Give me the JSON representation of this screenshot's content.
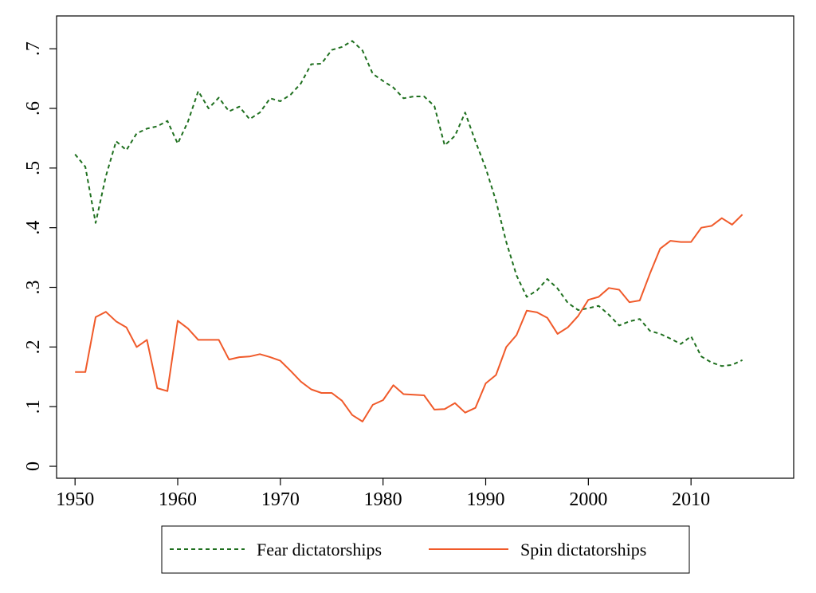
{
  "chart_data": {
    "type": "line",
    "title": "",
    "xlabel": "",
    "ylabel": "",
    "xlim": [
      1948.2,
      2020
    ],
    "ylim": [
      -0.02,
      0.755
    ],
    "x_ticks": [
      1950,
      1960,
      1970,
      1980,
      1990,
      2000,
      2010
    ],
    "x_tick_labels": [
      "1950",
      "1960",
      "1970",
      "1980",
      "1990",
      "2000",
      "2010"
    ],
    "y_ticks": [
      0,
      0.1,
      0.2,
      0.3,
      0.4,
      0.5,
      0.6,
      0.7
    ],
    "y_tick_labels": [
      "0",
      ".1",
      ".2",
      ".3",
      ".4",
      ".5",
      ".6",
      ".7"
    ],
    "grid": false,
    "legend_position": "bottom",
    "x": [
      1950,
      1951,
      1952,
      1953,
      1954,
      1955,
      1956,
      1957,
      1958,
      1959,
      1960,
      1961,
      1962,
      1963,
      1964,
      1965,
      1966,
      1967,
      1968,
      1969,
      1970,
      1971,
      1972,
      1973,
      1974,
      1975,
      1976,
      1977,
      1978,
      1979,
      1980,
      1981,
      1982,
      1983,
      1984,
      1985,
      1986,
      1987,
      1988,
      1989,
      1990,
      1991,
      1992,
      1993,
      1994,
      1995,
      1996,
      1997,
      1998,
      1999,
      2000,
      2001,
      2002,
      2003,
      2004,
      2005,
      2006,
      2007,
      2008,
      2009,
      2010,
      2011,
      2012,
      2013,
      2014,
      2015
    ],
    "series": [
      {
        "name": "Fear dictatorships",
        "color": "#1e6f1e",
        "dash": "dashed",
        "values": [
          0.523,
          0.502,
          0.408,
          0.486,
          0.545,
          0.53,
          0.558,
          0.566,
          0.57,
          0.579,
          0.541,
          0.578,
          0.629,
          0.6,
          0.618,
          0.595,
          0.603,
          0.582,
          0.593,
          0.617,
          0.612,
          0.623,
          0.642,
          0.674,
          0.675,
          0.698,
          0.703,
          0.713,
          0.697,
          0.658,
          0.646,
          0.635,
          0.617,
          0.62,
          0.62,
          0.604,
          0.538,
          0.554,
          0.593,
          0.545,
          0.5,
          0.445,
          0.376,
          0.32,
          0.284,
          0.295,
          0.314,
          0.298,
          0.274,
          0.262,
          0.265,
          0.269,
          0.254,
          0.236,
          0.243,
          0.247,
          0.227,
          0.222,
          0.214,
          0.205,
          0.218,
          0.184,
          0.174,
          0.168,
          0.17,
          0.178
        ]
      },
      {
        "name": "Spin dictatorships",
        "color": "#f05a2a",
        "dash": "solid",
        "values": [
          0.158,
          0.158,
          0.25,
          0.259,
          0.243,
          0.233,
          0.2,
          0.212,
          0.131,
          0.126,
          0.244,
          0.231,
          0.212,
          0.212,
          0.212,
          0.179,
          0.183,
          0.184,
          0.188,
          0.183,
          0.177,
          0.16,
          0.142,
          0.129,
          0.123,
          0.123,
          0.11,
          0.086,
          0.075,
          0.103,
          0.111,
          0.136,
          0.121,
          0.12,
          0.119,
          0.095,
          0.096,
          0.106,
          0.09,
          0.098,
          0.139,
          0.153,
          0.2,
          0.22,
          0.261,
          0.258,
          0.249,
          0.222,
          0.233,
          0.252,
          0.279,
          0.284,
          0.299,
          0.296,
          0.275,
          0.278,
          0.323,
          0.365,
          0.378,
          0.376,
          0.376,
          0.4,
          0.403,
          0.416,
          0.405,
          0.422
        ]
      }
    ]
  }
}
